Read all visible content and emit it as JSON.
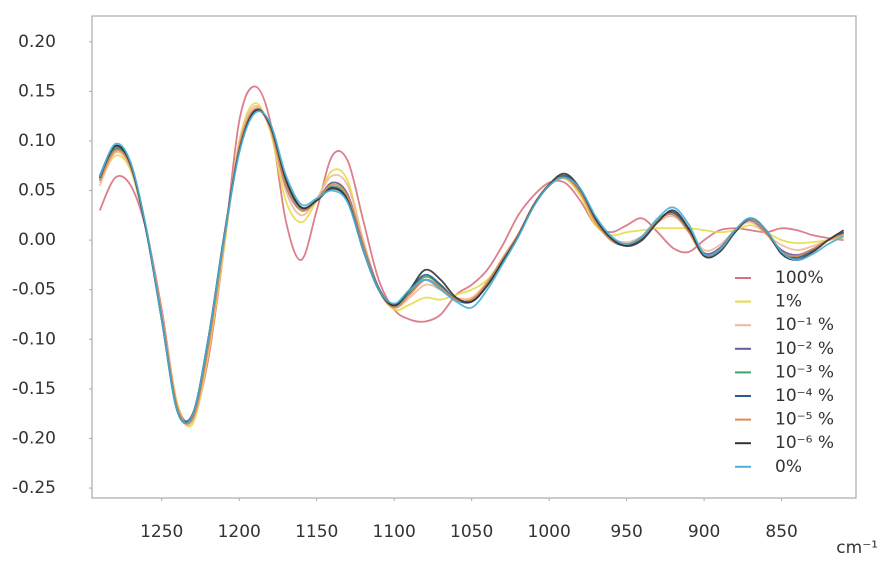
{
  "chart_data": {
    "type": "line",
    "x_label": "cm⁻¹",
    "x": [
      1290,
      1280,
      1270,
      1260,
      1250,
      1240,
      1230,
      1220,
      1210,
      1200,
      1190,
      1180,
      1170,
      1160,
      1150,
      1140,
      1130,
      1120,
      1110,
      1100,
      1090,
      1080,
      1070,
      1060,
      1050,
      1040,
      1030,
      1020,
      1010,
      1000,
      990,
      980,
      970,
      960,
      950,
      940,
      930,
      920,
      910,
      900,
      890,
      880,
      870,
      860,
      850,
      840,
      830,
      820,
      810
    ],
    "xlim": [
      1295,
      802
    ],
    "xticks": [
      1250,
      1200,
      1150,
      1100,
      1050,
      1000,
      950,
      900,
      850
    ],
    "ylim": [
      -0.26,
      0.226
    ],
    "yticks": [
      {
        "value": 0.2,
        "label": "0.20"
      },
      {
        "value": 0.15,
        "label": "0.15"
      },
      {
        "value": 0.1,
        "label": "0.10"
      },
      {
        "value": 0.05,
        "label": "0.05"
      },
      {
        "value": 0,
        "label": "0.00"
      },
      {
        "value": -0.05,
        "label": "-0.05"
      },
      {
        "value": -0.1,
        "label": "-0.10"
      },
      {
        "value": -0.15,
        "label": "-0.15"
      },
      {
        "value": -0.2,
        "label": "-0.20"
      },
      {
        "value": -0.25,
        "label": "-0.25"
      }
    ],
    "grid": false,
    "legend": "lower right",
    "series": [
      {
        "name": "100%",
        "color": "#d9707e",
        "values": [
          0.03,
          0.063,
          0.055,
          0.01,
          -0.07,
          -0.165,
          -0.18,
          -0.12,
          -0.01,
          0.12,
          0.155,
          0.12,
          0.02,
          -0.02,
          0.03,
          0.085,
          0.08,
          0.02,
          -0.04,
          -0.07,
          -0.08,
          -0.082,
          -0.075,
          -0.055,
          -0.045,
          -0.03,
          -0.005,
          0.025,
          0.045,
          0.058,
          0.058,
          0.04,
          0.015,
          0.008,
          0.015,
          0.022,
          0.008,
          -0.008,
          -0.012,
          0.0,
          0.01,
          0.012,
          0.01,
          0.008,
          0.012,
          0.01,
          0.005,
          0.002,
          0.0
        ]
      },
      {
        "name": "1%",
        "color": "#e6dc48",
        "values": [
          0.058,
          0.085,
          0.07,
          0.01,
          -0.075,
          -0.165,
          -0.185,
          -0.115,
          -0.01,
          0.1,
          0.138,
          0.11,
          0.04,
          0.018,
          0.04,
          0.07,
          0.06,
          0.0,
          -0.05,
          -0.07,
          -0.065,
          -0.058,
          -0.06,
          -0.055,
          -0.05,
          -0.04,
          -0.02,
          0.005,
          0.035,
          0.055,
          0.062,
          0.045,
          0.015,
          0.005,
          0.008,
          0.01,
          0.012,
          0.012,
          0.012,
          0.01,
          0.008,
          0.01,
          0.015,
          0.008,
          0.0,
          -0.003,
          -0.002,
          0.0,
          0.002
        ]
      },
      {
        "name": "10⁻¹ %",
        "color": "#efb898",
        "values": [
          0.055,
          0.088,
          0.072,
          0.012,
          -0.075,
          -0.168,
          -0.182,
          -0.11,
          -0.005,
          0.098,
          0.135,
          0.112,
          0.05,
          0.025,
          0.042,
          0.065,
          0.055,
          0.0,
          -0.048,
          -0.068,
          -0.058,
          -0.045,
          -0.05,
          -0.058,
          -0.058,
          -0.042,
          -0.02,
          0.004,
          0.034,
          0.056,
          0.063,
          0.048,
          0.018,
          0.002,
          -0.002,
          0.004,
          0.018,
          0.024,
          0.01,
          -0.01,
          -0.005,
          0.01,
          0.018,
          0.006,
          -0.005,
          -0.01,
          -0.006,
          0.0,
          0.005
        ]
      },
      {
        "name": "10⁻² %",
        "color": "#6a5a9a",
        "values": [
          0.06,
          0.092,
          0.074,
          0.01,
          -0.078,
          -0.17,
          -0.178,
          -0.105,
          0.0,
          0.092,
          0.132,
          0.114,
          0.055,
          0.03,
          0.04,
          0.058,
          0.046,
          -0.005,
          -0.048,
          -0.066,
          -0.054,
          -0.04,
          -0.048,
          -0.06,
          -0.06,
          -0.044,
          -0.02,
          0.005,
          0.035,
          0.055,
          0.064,
          0.049,
          0.02,
          0.001,
          -0.004,
          0.002,
          0.02,
          0.026,
          0.01,
          -0.013,
          -0.008,
          0.01,
          0.02,
          0.007,
          -0.01,
          -0.015,
          -0.009,
          0.0,
          0.007
        ]
      },
      {
        "name": "10⁻³ %",
        "color": "#3aa36a",
        "values": [
          0.062,
          0.093,
          0.075,
          0.01,
          -0.08,
          -0.172,
          -0.176,
          -0.1,
          0.0,
          0.09,
          0.13,
          0.116,
          0.06,
          0.032,
          0.04,
          0.054,
          0.042,
          -0.008,
          -0.05,
          -0.066,
          -0.052,
          -0.037,
          -0.046,
          -0.06,
          -0.062,
          -0.045,
          -0.02,
          0.005,
          0.035,
          0.055,
          0.064,
          0.05,
          0.02,
          0.0,
          -0.005,
          0.002,
          0.02,
          0.028,
          0.01,
          -0.015,
          -0.01,
          0.01,
          0.022,
          0.008,
          -0.012,
          -0.017,
          -0.01,
          0.0,
          0.008
        ]
      },
      {
        "name": "10⁻⁴ %",
        "color": "#2d5a8e",
        "values": [
          0.065,
          0.095,
          0.075,
          0.01,
          -0.08,
          -0.17,
          -0.175,
          -0.1,
          0.0,
          0.09,
          0.13,
          0.115,
          0.06,
          0.033,
          0.04,
          0.053,
          0.04,
          -0.01,
          -0.05,
          -0.065,
          -0.05,
          -0.035,
          -0.045,
          -0.06,
          -0.062,
          -0.045,
          -0.02,
          0.005,
          0.035,
          0.055,
          0.065,
          0.05,
          0.02,
          0.0,
          -0.005,
          0.002,
          0.02,
          0.028,
          0.01,
          -0.015,
          -0.01,
          0.01,
          0.022,
          0.008,
          -0.012,
          -0.018,
          -0.01,
          0.0,
          0.008
        ]
      },
      {
        "name": "10⁻⁵ %",
        "color": "#e08a50",
        "values": [
          0.06,
          0.09,
          0.074,
          0.012,
          -0.076,
          -0.168,
          -0.18,
          -0.108,
          -0.004,
          0.094,
          0.132,
          0.113,
          0.056,
          0.03,
          0.04,
          0.056,
          0.044,
          -0.006,
          -0.05,
          -0.068,
          -0.055,
          -0.04,
          -0.048,
          -0.06,
          -0.06,
          -0.043,
          -0.018,
          0.006,
          0.036,
          0.056,
          0.063,
          0.048,
          0.018,
          0.0,
          -0.004,
          0.003,
          0.02,
          0.026,
          0.008,
          -0.016,
          -0.01,
          0.01,
          0.021,
          0.007,
          -0.012,
          -0.016,
          -0.009,
          0.0,
          0.006
        ]
      },
      {
        "name": "10⁻⁶ %",
        "color": "#333333",
        "values": [
          0.063,
          0.095,
          0.076,
          0.01,
          -0.08,
          -0.172,
          -0.176,
          -0.1,
          0.002,
          0.09,
          0.13,
          0.116,
          0.062,
          0.033,
          0.04,
          0.052,
          0.04,
          -0.01,
          -0.05,
          -0.066,
          -0.05,
          -0.03,
          -0.04,
          -0.058,
          -0.062,
          -0.046,
          -0.022,
          0.004,
          0.035,
          0.056,
          0.067,
          0.052,
          0.022,
          0.002,
          -0.006,
          0.0,
          0.018,
          0.03,
          0.012,
          -0.016,
          -0.012,
          0.008,
          0.022,
          0.01,
          -0.014,
          -0.02,
          -0.012,
          0.0,
          0.01
        ]
      },
      {
        "name": "0%",
        "color": "#48b0d8",
        "values": [
          0.064,
          0.097,
          0.078,
          0.012,
          -0.08,
          -0.172,
          -0.176,
          -0.1,
          0.0,
          0.088,
          0.128,
          0.118,
          0.066,
          0.036,
          0.042,
          0.05,
          0.038,
          -0.01,
          -0.05,
          -0.064,
          -0.05,
          -0.04,
          -0.05,
          -0.062,
          -0.068,
          -0.05,
          -0.024,
          0.003,
          0.034,
          0.055,
          0.063,
          0.052,
          0.024,
          0.004,
          -0.004,
          0.004,
          0.022,
          0.033,
          0.016,
          -0.014,
          -0.01,
          0.01,
          0.022,
          0.01,
          -0.012,
          -0.02,
          -0.014,
          -0.004,
          0.004
        ]
      }
    ]
  }
}
